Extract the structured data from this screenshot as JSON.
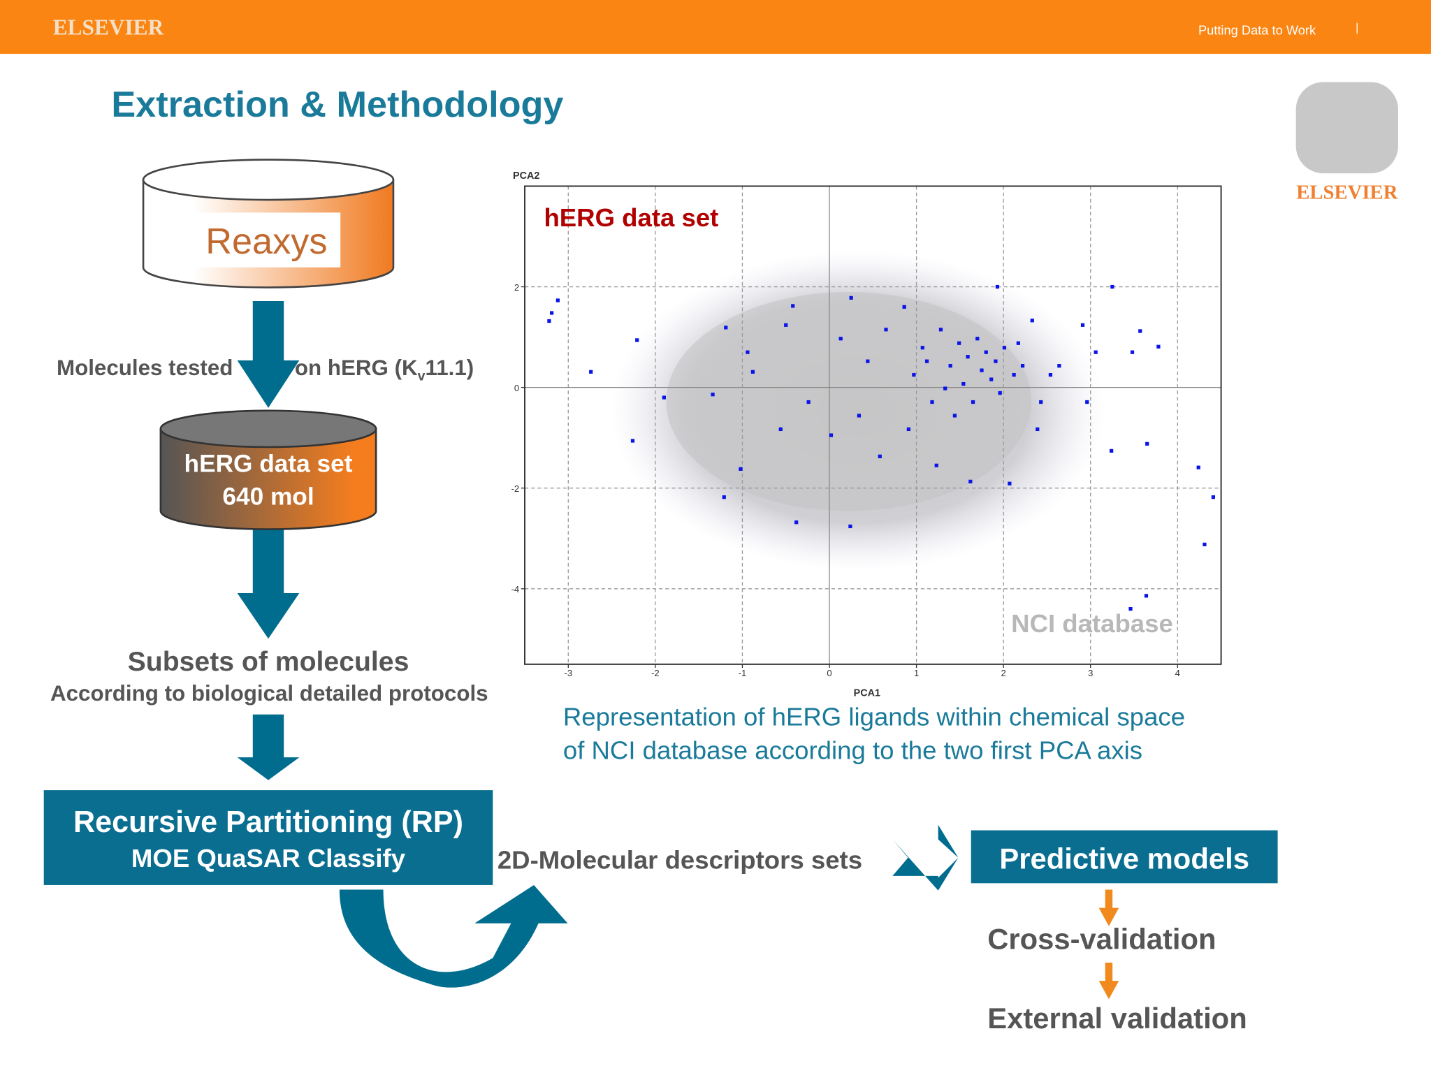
{
  "header": {
    "logo": "ELSEVIER",
    "tagline": "Putting Data to Work"
  },
  "title": "Extraction & Methodology",
  "side_logo": "ELSEVIER",
  "flow": {
    "source": "Reaxys",
    "edge_label_left": "Molecules tested",
    "edge_label_right": [
      "on hERG (K",
      "v",
      "11.1)"
    ],
    "dataset": [
      "hERG data set",
      "640 mol"
    ],
    "subsets": {
      "title": "Subsets of molecules",
      "subtitle": "According to biological detailed protocols"
    },
    "method": {
      "title": "Recursive Partitioning (RP)",
      "subtitle": "MOE QuaSAR Classify"
    },
    "descriptors": "2D-Molecular descriptors sets",
    "models": "Predictive models",
    "validation": [
      "Cross-validation",
      "External validation"
    ]
  },
  "chart_data": {
    "type": "scatter",
    "x_label": "PCA1",
    "y_label": "PCA2",
    "annotations": [
      "hERG data set",
      "NCI database"
    ],
    "xlim": [
      -3.5,
      4.5
    ],
    "ylim": [
      -5.5,
      4
    ],
    "xticks": [
      -3,
      -2,
      -1,
      0,
      1,
      2,
      3,
      4
    ],
    "yticks": [
      -4,
      -2,
      0,
      2
    ],
    "grid": true,
    "series": [
      {
        "color": "#0a14e6",
        "x": [
          -3.22,
          -3.19,
          -3.12,
          -2.74,
          -2.21,
          -2.26,
          -1.9,
          -1.19,
          -1.34,
          -1.02,
          -1.21,
          -0.94,
          -0.88,
          -0.42,
          -0.5,
          -0.38,
          0.24,
          0.02,
          0.13,
          0.25,
          0.44,
          0.58,
          0.86,
          0.97,
          1.07,
          1.18,
          1.28,
          1.39,
          1.49,
          1.54,
          1.59,
          1.65,
          1.7,
          1.75,
          1.8,
          1.86,
          1.91,
          1.96,
          2.01,
          2.07,
          2.12,
          2.22,
          2.33,
          2.43,
          2.64,
          2.91,
          3.06,
          3.24,
          3.25,
          3.48,
          3.57,
          3.65,
          3.78,
          4.24,
          4.41,
          4.31,
          3.64,
          3.46,
          1.93,
          1.44,
          0.91,
          1.23,
          1.62,
          2.39,
          0.34,
          -0.24,
          -0.56,
          0.65,
          1.12,
          1.33,
          2.17,
          2.54,
          2.96
        ],
        "y": [
          1.32,
          1.48,
          1.73,
          0.31,
          0.94,
          -1.06,
          -0.2,
          1.19,
          -0.14,
          -1.62,
          -2.18,
          0.7,
          0.31,
          1.62,
          1.24,
          -2.68,
          -2.76,
          -0.95,
          0.97,
          1.78,
          0.52,
          -1.37,
          1.6,
          0.25,
          0.79,
          -0.29,
          1.15,
          0.43,
          0.88,
          0.07,
          0.61,
          -0.29,
          0.97,
          0.34,
          0.7,
          0.16,
          0.52,
          -0.11,
          0.79,
          -1.91,
          0.25,
          0.43,
          1.33,
          -0.29,
          0.43,
          1.24,
          0.7,
          -1.26,
          2.0,
          0.7,
          1.12,
          -1.12,
          0.81,
          -1.59,
          -2.18,
          -3.12,
          -4.14,
          -4.4,
          2.0,
          -0.56,
          -0.83,
          -1.55,
          -1.87,
          -0.83,
          -0.56,
          -0.29,
          -0.83,
          1.15,
          0.52,
          -0.02,
          0.88,
          0.25,
          -0.29
        ]
      }
    ]
  },
  "caption": [
    "Representation of hERG ligands within chemical space",
    "of NCI database according to the two first PCA axis"
  ]
}
